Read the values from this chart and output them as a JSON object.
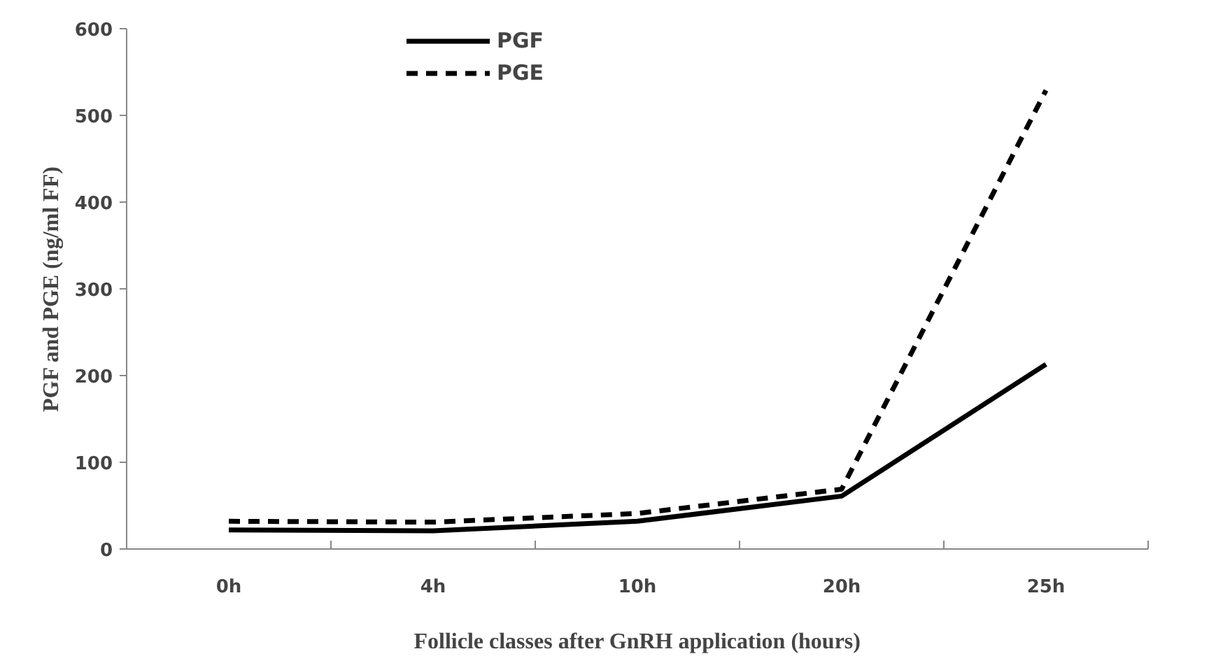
{
  "chart_data": {
    "type": "line",
    "xlabel": "Follicle classes after GnRH application (hours)",
    "ylabel": "PGF and PGE (ng/ml FF)",
    "categories": [
      "0h",
      "4h",
      "10h",
      "20h",
      "25h"
    ],
    "series": [
      {
        "name": "PGF",
        "color": "#000000",
        "line_style": "solid",
        "values": [
          22,
          21,
          32,
          61,
          213
        ]
      },
      {
        "name": "PGE",
        "color": "#000000",
        "line_style": "dashed",
        "values": [
          32,
          31,
          41,
          69,
          529
        ]
      }
    ],
    "ylim": [
      0,
      600
    ],
    "yticks": [
      0,
      100,
      200,
      300,
      400,
      500,
      600
    ],
    "grid": false,
    "legend": "top left",
    "marker": "none"
  }
}
